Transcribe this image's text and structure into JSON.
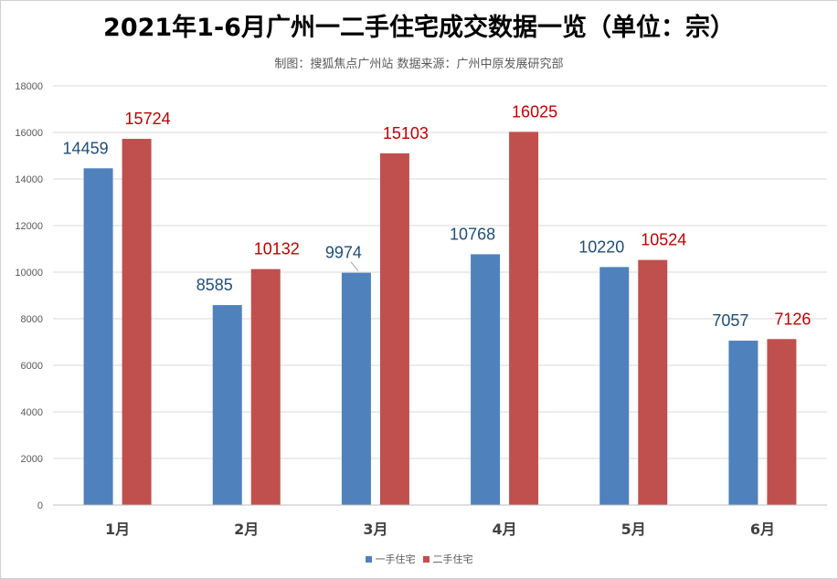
{
  "chart_data": {
    "type": "bar",
    "title": "2021年1-6月广州一二手住宅成交数据一览（单位：宗）",
    "subtitle": "制图：搜狐焦点广州站  数据来源：广州中原发展研究部",
    "categories": [
      "1月",
      "2月",
      "3月",
      "4月",
      "5月",
      "6月"
    ],
    "series": [
      {
        "name": "一手住宅",
        "color": "#4f81bd",
        "label_color": "#1f4e79",
        "values": [
          14459,
          8585,
          9974,
          10768,
          10220,
          7057
        ]
      },
      {
        "name": "二手住宅",
        "color": "#c0504d",
        "label_color": "#c00000",
        "values": [
          15724,
          10132,
          15103,
          16025,
          10524,
          7126
        ]
      }
    ],
    "ylim": [
      0,
      18000
    ],
    "yticks": [
      0,
      2000,
      4000,
      6000,
      8000,
      10000,
      12000,
      14000,
      16000,
      18000
    ],
    "grid": true,
    "legend_position": "bottom"
  }
}
